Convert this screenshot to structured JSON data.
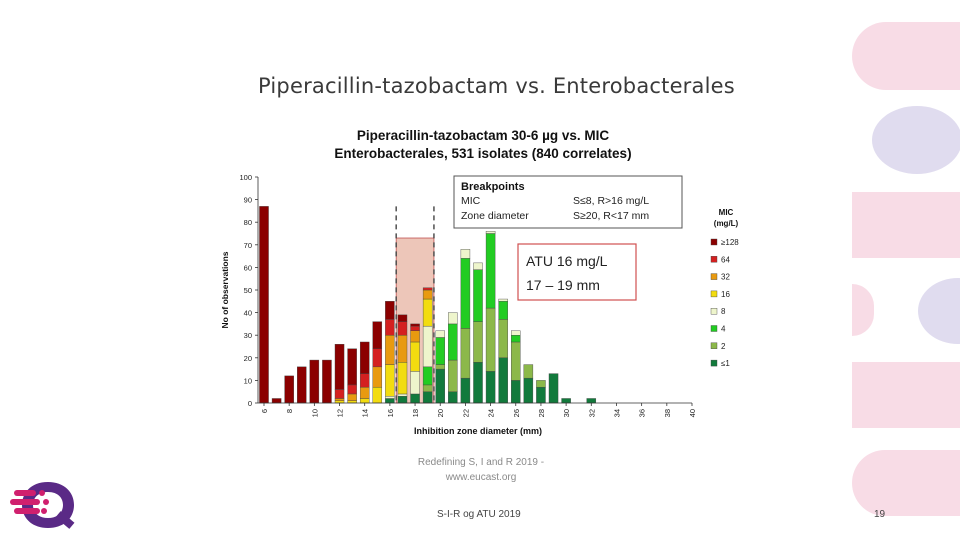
{
  "slide": {
    "title": "Piperacillin-tazobactam vs. Enterobacterales",
    "caption_line1": "Redefining S, I and R 2019 -",
    "caption_line2": "www.eucast.org",
    "footer": "S-I-R og ATU 2019",
    "page_number": "19"
  },
  "chart_data": {
    "type": "bar",
    "title_line1": "Piperacillin-tazobactam  30-6 µg vs. MIC",
    "title_line2": "Enterobacterales, 531 isolates (840 correlates)",
    "xlabel": "Inhibition zone diameter (mm)",
    "ylabel": "No of observations",
    "ylim": [
      0,
      100
    ],
    "yticks": [
      0,
      10,
      20,
      30,
      40,
      50,
      60,
      70,
      80,
      90,
      100
    ],
    "xlim": [
      6,
      40
    ],
    "xticks": [
      6,
      8,
      10,
      12,
      14,
      16,
      18,
      20,
      22,
      24,
      26,
      28,
      30,
      32,
      34,
      36,
      38,
      40
    ],
    "breakpoints_box": {
      "title": "Breakpoints",
      "rows": [
        {
          "label": "MIC",
          "value": "S≤8, R>16 mg/L"
        },
        {
          "label": "Zone diameter",
          "value": "S≥20, R<17 mm"
        }
      ]
    },
    "atu_box": {
      "line1": "ATU 16 mg/L",
      "line2": "17 – 19 mm"
    },
    "atu_range": [
      16.5,
      19.5
    ],
    "breakpoint_lines": [
      16.5,
      19.5
    ],
    "legend": {
      "title_line1": "MIC",
      "title_line2": "(mg/L)",
      "position": "right",
      "items": [
        "≥128",
        "64",
        "32",
        "16",
        "8",
        "4",
        "2",
        "≤1"
      ]
    },
    "series_colors": [
      "#8b0000",
      "#d42020",
      "#e89a10",
      "#f2dc10",
      "#eef5cc",
      "#22cc22",
      "#8cb84a",
      "#127a3c"
    ],
    "bars": [
      {
        "x": 6,
        "values": [
          87,
          0,
          0,
          0,
          0,
          0,
          0,
          0
        ]
      },
      {
        "x": 7,
        "values": [
          2,
          0,
          0,
          0,
          0,
          0,
          0,
          0
        ]
      },
      {
        "x": 8,
        "values": [
          12,
          0,
          0,
          0,
          0,
          0,
          0,
          0
        ]
      },
      {
        "x": 9,
        "values": [
          16,
          0,
          0,
          0,
          0,
          0,
          0,
          0
        ]
      },
      {
        "x": 10,
        "values": [
          19,
          0,
          0,
          0,
          0,
          0,
          0,
          0
        ]
      },
      {
        "x": 11,
        "values": [
          19,
          0,
          0,
          0,
          0,
          0,
          0,
          0
        ]
      },
      {
        "x": 12,
        "values": [
          20,
          4,
          1,
          1,
          0,
          0,
          0,
          0
        ]
      },
      {
        "x": 13,
        "values": [
          16,
          4,
          3,
          1,
          0,
          0,
          0,
          0
        ]
      },
      {
        "x": 14,
        "values": [
          14,
          6,
          5,
          2,
          0,
          0,
          0,
          0
        ]
      },
      {
        "x": 15,
        "values": [
          12,
          8,
          9,
          7,
          0,
          0,
          0,
          0
        ]
      },
      {
        "x": 16,
        "values": [
          8,
          7,
          13,
          14,
          1,
          0,
          0,
          2
        ]
      },
      {
        "x": 17,
        "values": [
          3,
          6,
          12,
          14,
          1,
          0,
          0,
          3
        ]
      },
      {
        "x": 18,
        "values": [
          1,
          2,
          5,
          13,
          10,
          0,
          0,
          4
        ]
      },
      {
        "x": 19,
        "values": [
          0,
          1,
          4,
          12,
          18,
          8,
          3,
          5
        ]
      },
      {
        "x": 20,
        "values": [
          0,
          0,
          0,
          0,
          3,
          12,
          2,
          15
        ]
      },
      {
        "x": 21,
        "values": [
          0,
          0,
          0,
          0,
          5,
          16,
          14,
          5
        ]
      },
      {
        "x": 22,
        "values": [
          0,
          0,
          0,
          0,
          4,
          31,
          22,
          11
        ]
      },
      {
        "x": 23,
        "values": [
          0,
          0,
          0,
          0,
          3,
          23,
          18,
          18
        ]
      },
      {
        "x": 24,
        "values": [
          0,
          0,
          0,
          0,
          1,
          33,
          28,
          14
        ]
      },
      {
        "x": 25,
        "values": [
          0,
          0,
          0,
          0,
          1,
          8,
          17,
          20
        ]
      },
      {
        "x": 26,
        "values": [
          0,
          0,
          0,
          0,
          2,
          3,
          17,
          10
        ]
      },
      {
        "x": 27,
        "values": [
          0,
          0,
          0,
          0,
          0,
          0,
          6,
          11
        ]
      },
      {
        "x": 28,
        "values": [
          0,
          0,
          0,
          0,
          0,
          0,
          3,
          7
        ]
      },
      {
        "x": 29,
        "values": [
          0,
          0,
          0,
          0,
          0,
          0,
          0,
          13
        ]
      },
      {
        "x": 30,
        "values": [
          0,
          0,
          0,
          0,
          0,
          0,
          0,
          2
        ]
      },
      {
        "x": 32,
        "values": [
          0,
          0,
          0,
          0,
          0,
          0,
          0,
          2
        ]
      }
    ]
  },
  "decor": {
    "pink": "#f8dce6",
    "lavender": "#e0dcef",
    "logo_magenta": "#d0206e",
    "logo_purple": "#5a2a86"
  }
}
